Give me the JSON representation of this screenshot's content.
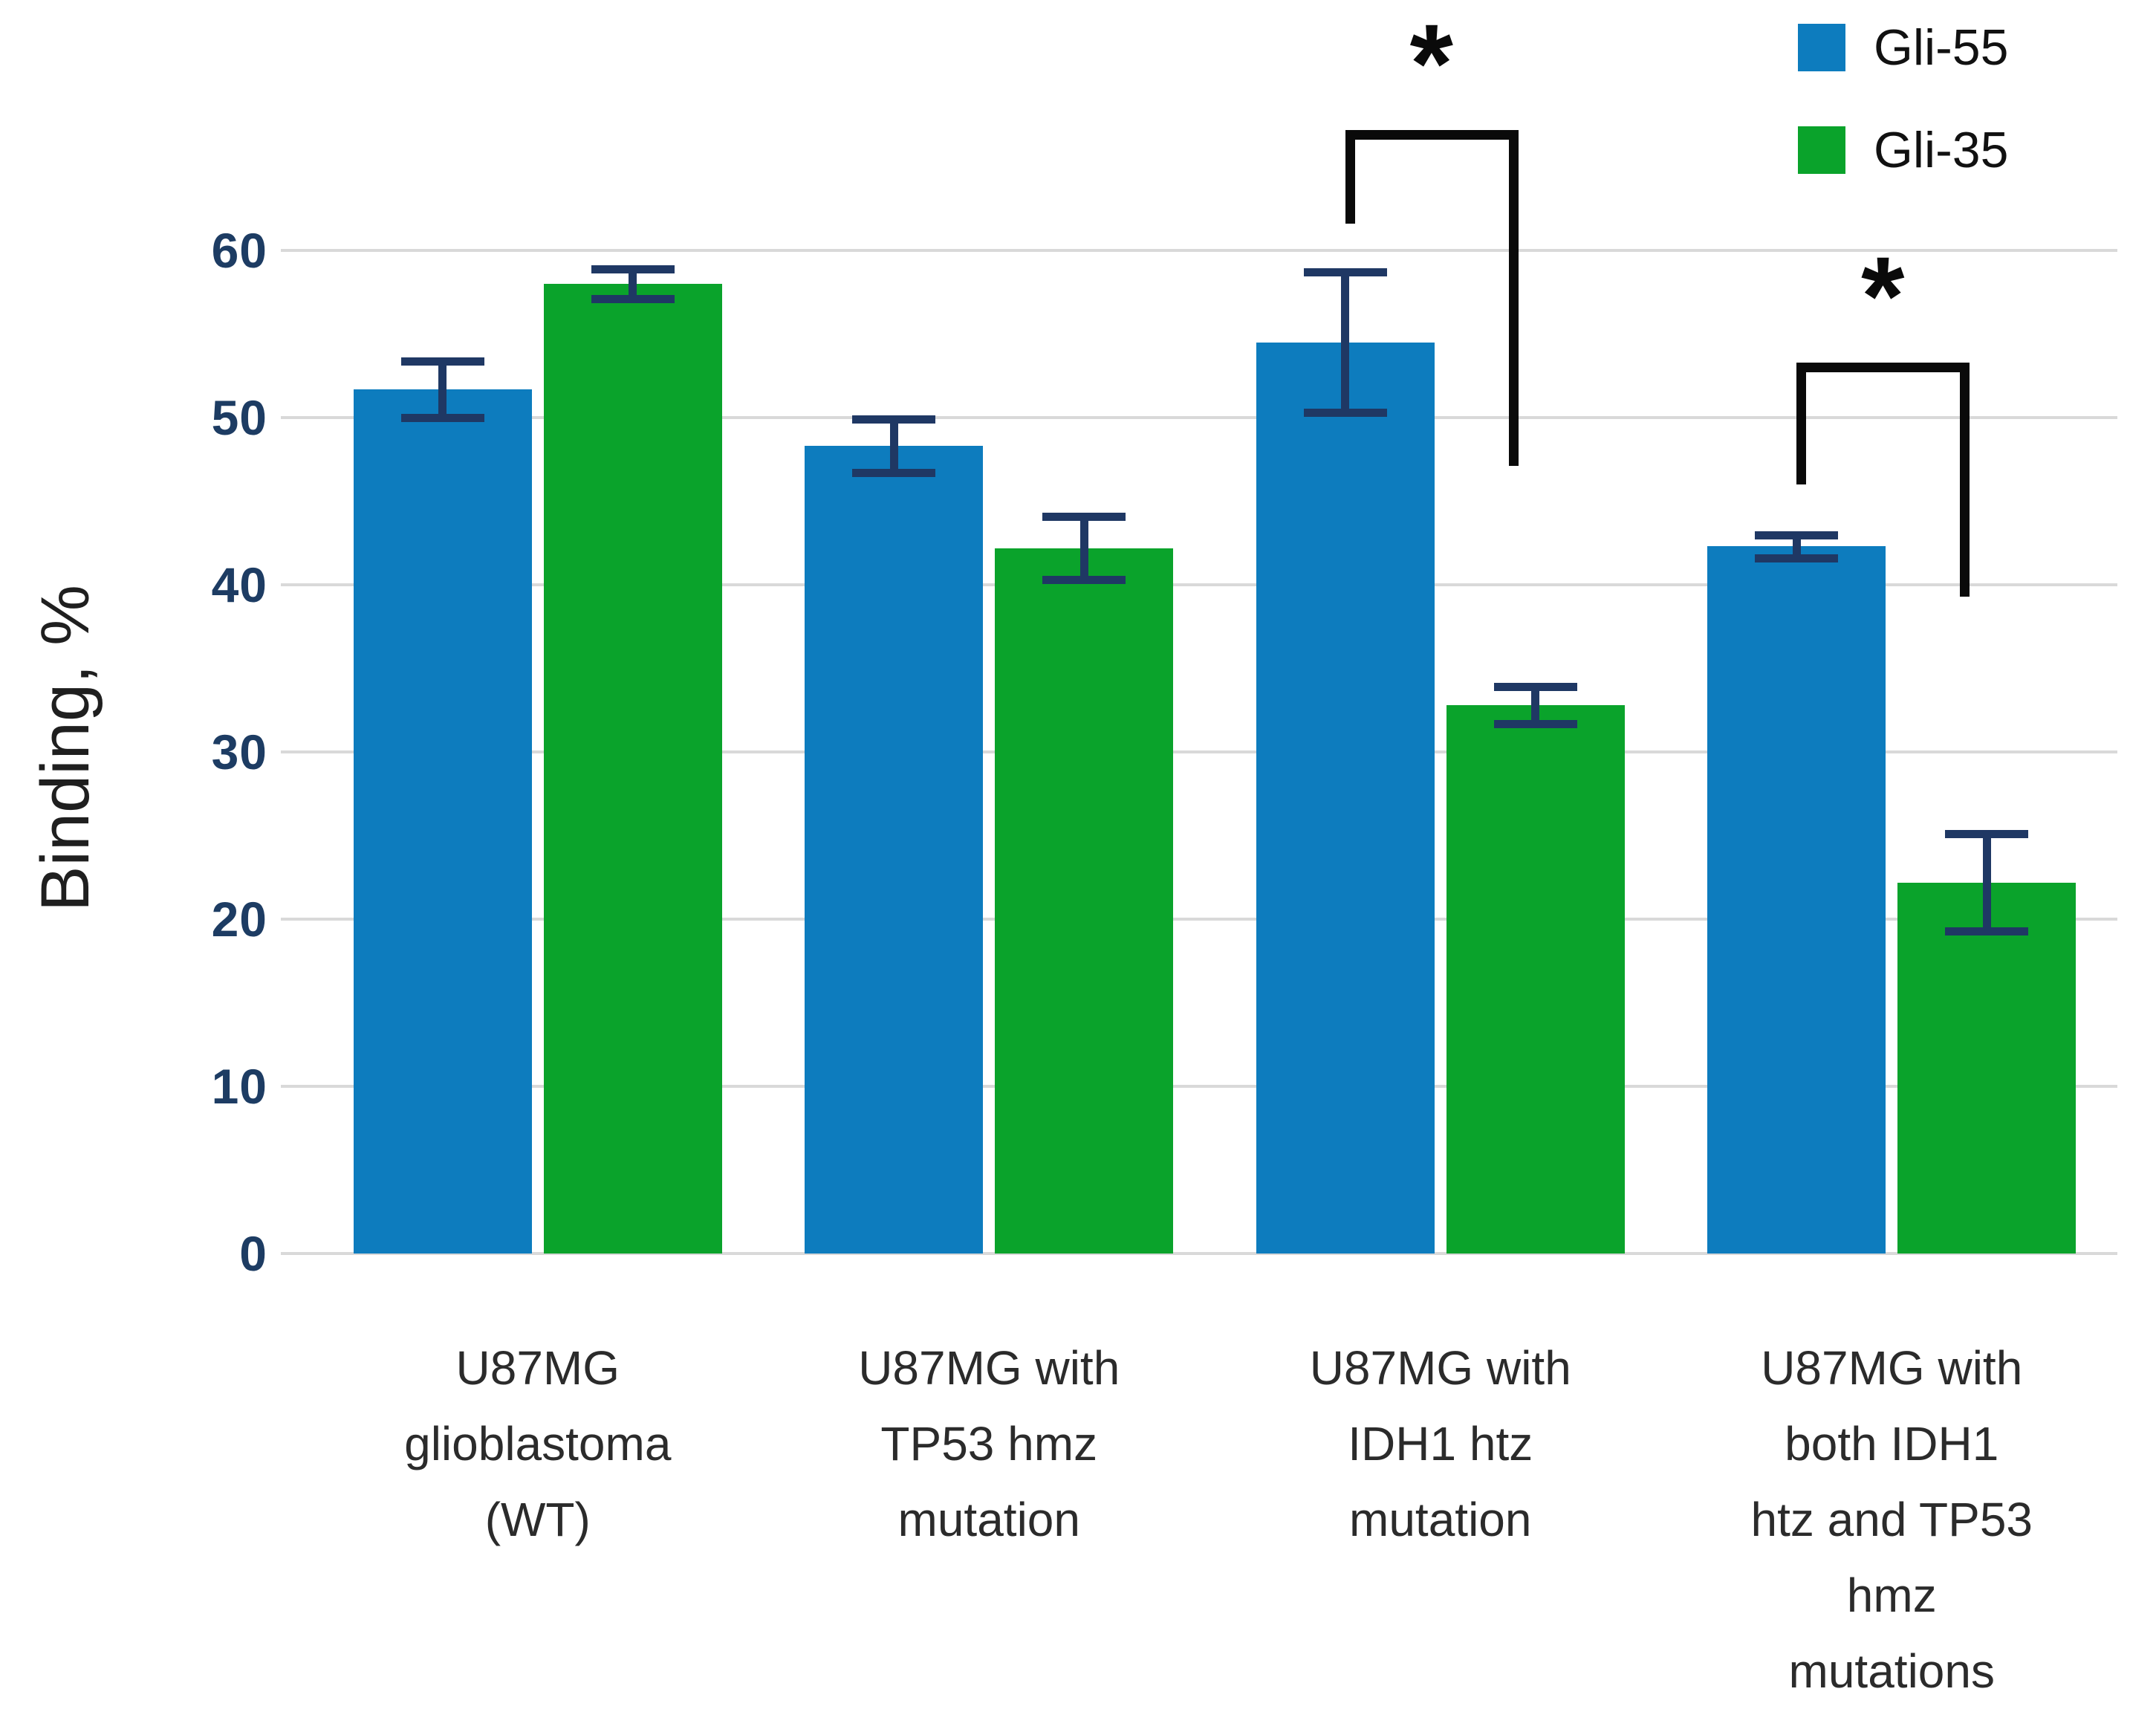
{
  "chart_data": {
    "type": "bar",
    "title": "",
    "xlabel": "",
    "ylabel": "Binding, %",
    "ylim": [
      0,
      60
    ],
    "yticks": [
      0,
      10,
      20,
      30,
      40,
      50,
      60
    ],
    "grid": true,
    "legend_position": "top-right",
    "categories": [
      "U87MG glioblastoma (WT)",
      "U87MG with TP53 hmz mutation",
      "U87MG with IDH1 htz mutation",
      "U87MG with both IDH1 htz and TP53 hmz mutations"
    ],
    "category_lines": [
      [
        "U87MG",
        "glioblastoma",
        "(WT)"
      ],
      [
        "U87MG with",
        "TP53 hmz",
        "mutation"
      ],
      [
        "U87MG with",
        "IDH1 htz",
        "mutation"
      ],
      [
        "U87MG with",
        "both IDH1",
        "htz and TP53",
        "hmz",
        "mutations"
      ]
    ],
    "series": [
      {
        "name": "Gli-55",
        "color": "#0d7cbe",
        "values": [
          51.7,
          48.3,
          54.5,
          42.3
        ],
        "errors": [
          1.7,
          1.6,
          4.2,
          0.7
        ]
      },
      {
        "name": "Gli-35",
        "color": "#0aa32b",
        "values": [
          58.0,
          42.2,
          32.8,
          22.2
        ],
        "errors": [
          0.9,
          1.9,
          1.1,
          2.9
        ]
      }
    ],
    "significance": [
      {
        "category_index": 2,
        "between": [
          "Gli-55",
          "Gli-35"
        ],
        "label": "*",
        "top": 67.2,
        "left_arm_end": 61.6,
        "right_arm_end": 47.1
      },
      {
        "category_index": 3,
        "between": [
          "Gli-55",
          "Gli-35"
        ],
        "label": "*",
        "top": 53.3,
        "left_arm_end": 46.0,
        "right_arm_end": 39.3
      }
    ]
  },
  "colors": {
    "background": "#ffffff",
    "gridline": "#d9d9d9",
    "error_bar": "#1f3864",
    "tick_label": "#1d3c63",
    "category_label": "#2b2b2b",
    "axis_title": "#1f1f1f",
    "bracket": "#0a0a0a",
    "series_blue": "#0d7cbe",
    "series_green": "#0aa32b"
  }
}
